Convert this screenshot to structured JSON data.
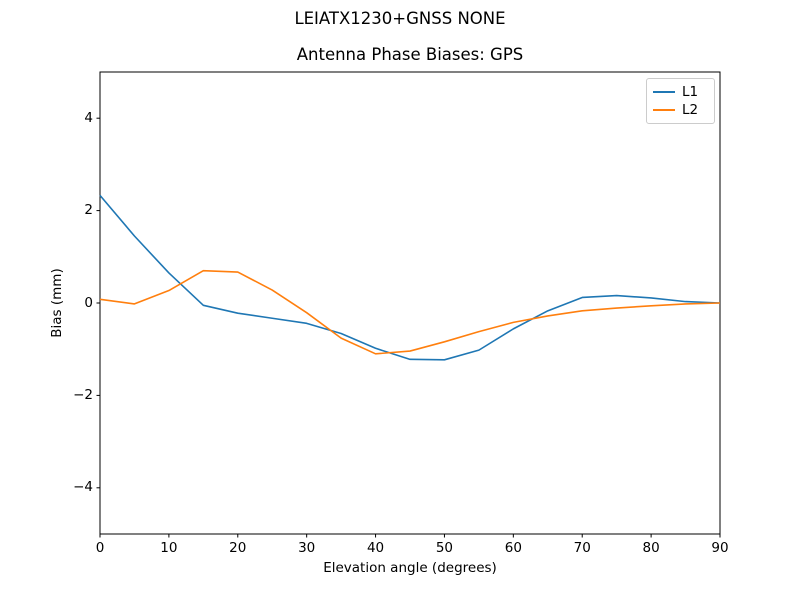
{
  "figure": {
    "suptitle": "LEIATX1230+GNSS NONE",
    "background": "#ffffff",
    "axis_color": "#000000"
  },
  "chart_data": {
    "type": "line",
    "title": "Antenna Phase Biases: GPS",
    "suptitle": "LEIATX1230+GNSS NONE",
    "xlabel": "Elevation angle (degrees)",
    "ylabel": "Bias (mm)",
    "xlim": [
      0,
      90
    ],
    "ylim": [
      -5,
      5
    ],
    "xticks": [
      0,
      10,
      20,
      30,
      40,
      50,
      60,
      70,
      80,
      90
    ],
    "yticks": [
      -4,
      -2,
      0,
      2,
      4
    ],
    "grid": false,
    "legend_position": "upper right",
    "x": [
      0,
      5,
      10,
      15,
      20,
      25,
      30,
      35,
      40,
      45,
      50,
      55,
      60,
      65,
      70,
      75,
      80,
      85,
      90
    ],
    "series": [
      {
        "name": "L1",
        "color": "#1f77b4",
        "values": [
          2.33,
          1.45,
          0.65,
          -0.05,
          -0.22,
          -0.33,
          -0.44,
          -0.66,
          -0.98,
          -1.22,
          -1.23,
          -1.02,
          -0.56,
          -0.17,
          0.12,
          0.16,
          0.11,
          0.03,
          0.0
        ]
      },
      {
        "name": "L2",
        "color": "#ff7f0e",
        "values": [
          0.08,
          -0.02,
          0.27,
          0.7,
          0.67,
          0.28,
          -0.21,
          -0.76,
          -1.1,
          -1.04,
          -0.84,
          -0.62,
          -0.42,
          -0.28,
          -0.17,
          -0.11,
          -0.06,
          -0.02,
          0.0
        ]
      }
    ]
  }
}
